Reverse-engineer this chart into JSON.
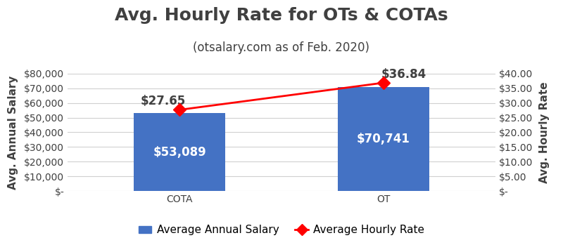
{
  "title": "Avg. Hourly Rate for OTs & COTAs",
  "subtitle": "(otsalary.com as of Feb. 2020)",
  "categories": [
    "COTA",
    "OT"
  ],
  "annual_salaries": [
    53089,
    70741
  ],
  "hourly_rates": [
    27.65,
    36.84
  ],
  "bar_color": "#4472C4",
  "line_color": "#FF0000",
  "marker_color": "#FF0000",
  "bar_label_color": "#FFFFFF",
  "line_label_color": "#404040",
  "ylabel_left": "Avg. Annual Salary",
  "ylabel_right": "Avg. Hourly Rate",
  "ylim_left": [
    0,
    80000
  ],
  "ylim_right": [
    0,
    40
  ],
  "yticks_left": [
    0,
    10000,
    20000,
    30000,
    40000,
    50000,
    60000,
    70000,
    80000
  ],
  "yticks_right": [
    0,
    5,
    10,
    15,
    20,
    25,
    30,
    35,
    40
  ],
  "title_fontsize": 18,
  "subtitle_fontsize": 12,
  "tick_label_fontsize": 10,
  "axis_label_fontsize": 11,
  "bar_label_fontsize": 12,
  "legend_fontsize": 11,
  "background_color": "#FFFFFF",
  "grid_color": "#D0D0D0",
  "text_color": "#404040"
}
